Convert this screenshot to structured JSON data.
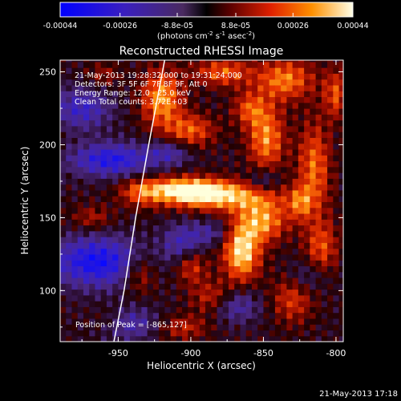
{
  "colorbar": {
    "tick_labels": [
      "-0.00044",
      "-0.00026",
      "-8.8e-05",
      "8.8e-05",
      "0.00026",
      "0.00044"
    ],
    "tick_values": [
      -0.00044,
      -0.00026,
      -8.8e-05,
      8.8e-05,
      0.00026,
      0.00044
    ],
    "range": [
      -0.00044,
      0.00044
    ],
    "units_main": "(photons cm",
    "units_exp1": "-2",
    "units_mid": " s",
    "units_exp2": "-1",
    "units_end": " asec",
    "units_exp3": "-2",
    "units_close": ")"
  },
  "chart_data": {
    "type": "heatmap",
    "title": "Reconstructed RHESSI Image",
    "xlabel": "Heliocentric X (arcsec)",
    "ylabel": "Heliocentric Y (arcsec)",
    "xlim": [
      -990,
      -795
    ],
    "ylim": [
      65,
      258
    ],
    "x_ticks": [
      -950,
      -900,
      -850,
      -800
    ],
    "x_tick_labels": [
      "-950",
      "-900",
      "-850",
      "-800"
    ],
    "y_ticks": [
      100,
      150,
      200,
      250
    ],
    "y_tick_labels": [
      "100",
      "150",
      "200",
      "250"
    ],
    "peak": [
      -865,
      127
    ],
    "annotations": [
      "21-May-2013 19:28:32.000 to 19:31:24.000",
      "Detectors: 3F 5F 6F 7F 8F 9F, Att 0",
      "Energy Range: 12.0 - 25.0 keV",
      "Clean     Total counts: 3.72E+03"
    ],
    "peak_label": "Position of Peak = [-865,127]",
    "limb_curve": [
      [
        -953,
        65
      ],
      [
        -946,
        100
      ],
      [
        -938,
        150
      ],
      [
        -929,
        200
      ],
      [
        -918,
        258
      ]
    ]
  },
  "footer": {
    "timestamp": "21-May-2013 17:18"
  }
}
